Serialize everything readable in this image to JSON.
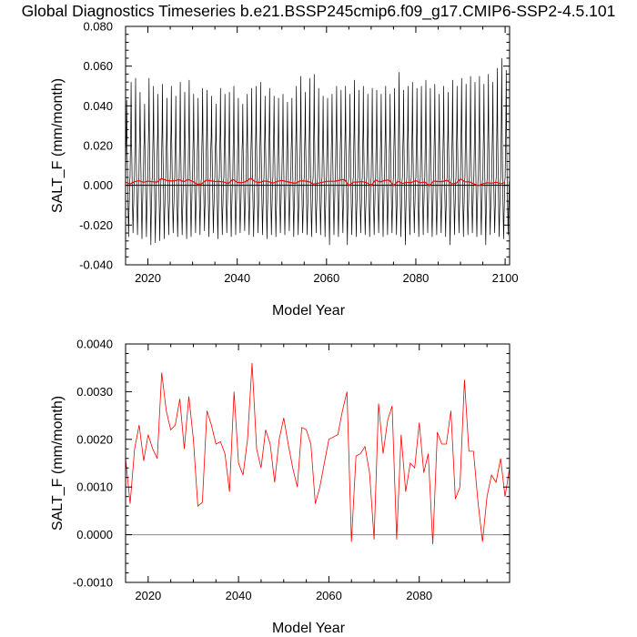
{
  "title": "Global Diagnostics Timeseries b.e21.BSSP245cmip6.f09_g17.CMIP6-SSP2-4.5.101",
  "colors": {
    "monthly": "#000000",
    "annual": "#ff0000",
    "zero": "#888888"
  },
  "chart_data": [
    {
      "type": "line",
      "xlabel": "Model Year",
      "ylabel": "SALT_F (mm/month)",
      "xlim": [
        2015,
        2101
      ],
      "ylim": [
        -0.04,
        0.08
      ],
      "xticks": [
        "2020",
        "2040",
        "2060",
        "2080",
        "2100"
      ],
      "yticks": [
        "-0.040",
        "-0.020",
        "0.000",
        "0.020",
        "0.040",
        "0.060",
        "0.080"
      ],
      "grid": false,
      "series": [
        {
          "style": "monthly seasonal cycle (black)",
          "annual_max": [
            0.043,
            0.052,
            0.054,
            0.047,
            0.041,
            0.054,
            0.05,
            0.046,
            0.051,
            0.044,
            0.05,
            0.045,
            0.052,
            0.047,
            0.053,
            0.046,
            0.044,
            0.049,
            0.048,
            0.045,
            0.041,
            0.049,
            0.046,
            0.047,
            0.05,
            0.044,
            0.041,
            0.046,
            0.049,
            0.05,
            0.052,
            0.045,
            0.049,
            0.045,
            0.044,
            0.046,
            0.042,
            0.044,
            0.05,
            0.055,
            0.047,
            0.054,
            0.056,
            0.049,
            0.045,
            0.044,
            0.046,
            0.05,
            0.048,
            0.05,
            0.046,
            0.053,
            0.048,
            0.05,
            0.046,
            0.049,
            0.048,
            0.046,
            0.05,
            0.046,
            0.049,
            0.057,
            0.048,
            0.05,
            0.052,
            0.049,
            0.05,
            0.053,
            0.049,
            0.051,
            0.046,
            0.05,
            0.047,
            0.053,
            0.05,
            0.054,
            0.051,
            0.055,
            0.052,
            0.055,
            0.051,
            0.056,
            0.052,
            0.059,
            0.064,
            0.058
          ],
          "annual_min": [
            -0.026,
            -0.024,
            -0.025,
            -0.027,
            -0.026,
            -0.03,
            -0.029,
            -0.028,
            -0.027,
            -0.025,
            -0.024,
            -0.026,
            -0.025,
            -0.027,
            -0.026,
            -0.024,
            -0.025,
            -0.023,
            -0.026,
            -0.024,
            -0.027,
            -0.025,
            -0.024,
            -0.026,
            -0.025,
            -0.024,
            -0.023,
            -0.025,
            -0.026,
            -0.024,
            -0.025,
            -0.027,
            -0.025,
            -0.026,
            -0.024,
            -0.025,
            -0.023,
            -0.026,
            -0.025,
            -0.024,
            -0.025,
            -0.026,
            -0.024,
            -0.025,
            -0.026,
            -0.03,
            -0.025,
            -0.026,
            -0.024,
            -0.03,
            -0.025,
            -0.026,
            -0.024,
            -0.025,
            -0.026,
            -0.025,
            -0.024,
            -0.026,
            -0.025,
            -0.024,
            -0.025,
            -0.026,
            -0.03,
            -0.025,
            -0.024,
            -0.026,
            -0.025,
            -0.024,
            -0.026,
            -0.025,
            -0.024,
            -0.026,
            -0.03,
            -0.025,
            -0.024,
            -0.026,
            -0.025,
            -0.024,
            -0.026,
            -0.025,
            -0.03,
            -0.025,
            -0.024,
            -0.026,
            -0.027,
            -0.025
          ]
        },
        {
          "style": "annual mean (red)",
          "x": [
            2015,
            2016,
            2017,
            2018,
            2019,
            2020,
            2021,
            2022,
            2023,
            2024,
            2025,
            2026,
            2027,
            2028,
            2029,
            2030,
            2031,
            2032,
            2033,
            2034,
            2035,
            2036,
            2037,
            2038,
            2039,
            2040,
            2041,
            2042,
            2043,
            2044,
            2045,
            2046,
            2047,
            2048,
            2049,
            2050,
            2051,
            2052,
            2053,
            2054,
            2055,
            2056,
            2057,
            2058,
            2059,
            2060,
            2061,
            2062,
            2063,
            2064,
            2065,
            2066,
            2067,
            2068,
            2069,
            2070,
            2071,
            2072,
            2073,
            2074,
            2075,
            2076,
            2077,
            2078,
            2079,
            2080,
            2081,
            2082,
            2083,
            2084,
            2085,
            2086,
            2087,
            2088,
            2089,
            2090,
            2091,
            2092,
            2093,
            2094,
            2095,
            2096,
            2097,
            2098,
            2099,
            2100
          ],
          "values": [
            0.0016,
            0.00065,
            0.0018,
            0.0023,
            0.00155,
            0.0021,
            0.0018,
            0.0016,
            0.0034,
            0.0026,
            0.0022,
            0.0023,
            0.00285,
            0.0018,
            0.0029,
            0.002,
            0.0006,
            0.00068,
            0.0026,
            0.0023,
            0.0019,
            0.00195,
            0.0017,
            0.0009,
            0.003,
            0.0015,
            0.00125,
            0.002,
            0.0036,
            0.0018,
            0.0014,
            0.0022,
            0.0019,
            0.0011,
            0.002,
            0.00245,
            0.0019,
            0.0014,
            0.001,
            0.00225,
            0.0022,
            0.0019,
            0.00065,
            0.001,
            0.0015,
            0.002,
            0.00205,
            0.0021,
            0.0026,
            0.003,
            -0.00015,
            0.00165,
            0.0017,
            0.00185,
            0.0013,
            -0.0001,
            0.00275,
            0.0017,
            0.0024,
            0.0027,
            -0.0001,
            0.0021,
            0.0009,
            0.0015,
            0.0014,
            0.00235,
            0.0013,
            0.0017,
            -0.0002,
            0.00215,
            0.0019,
            0.0019,
            0.0026,
            0.00075,
            0.001,
            0.00325,
            0.00175,
            0.00175,
            0.0007,
            -0.00015,
            0.0008,
            0.00125,
            0.0011,
            0.0016,
            0.0008,
            0.0014
          ]
        }
      ]
    },
    {
      "type": "line",
      "xlabel": "Model Year",
      "ylabel": "SALT_F (mm/month)",
      "xlim": [
        2015,
        2100
      ],
      "ylim": [
        -0.001,
        0.004
      ],
      "xticks": [
        "2020",
        "2040",
        "2060",
        "2080"
      ],
      "yticks": [
        "-0.0010",
        "0.0000",
        "0.0010",
        "0.0020",
        "0.0030",
        "0.0040"
      ],
      "grid": false,
      "series": [
        {
          "style": "annual mean (red)",
          "x": [
            2015,
            2016,
            2017,
            2018,
            2019,
            2020,
            2021,
            2022,
            2023,
            2024,
            2025,
            2026,
            2027,
            2028,
            2029,
            2030,
            2031,
            2032,
            2033,
            2034,
            2035,
            2036,
            2037,
            2038,
            2039,
            2040,
            2041,
            2042,
            2043,
            2044,
            2045,
            2046,
            2047,
            2048,
            2049,
            2050,
            2051,
            2052,
            2053,
            2054,
            2055,
            2056,
            2057,
            2058,
            2059,
            2060,
            2061,
            2062,
            2063,
            2064,
            2065,
            2066,
            2067,
            2068,
            2069,
            2070,
            2071,
            2072,
            2073,
            2074,
            2075,
            2076,
            2077,
            2078,
            2079,
            2080,
            2081,
            2082,
            2083,
            2084,
            2085,
            2086,
            2087,
            2088,
            2089,
            2090,
            2091,
            2092,
            2093,
            2094,
            2095,
            2096,
            2097,
            2098,
            2099,
            2100
          ],
          "values": [
            0.0016,
            0.00065,
            0.0018,
            0.0023,
            0.00155,
            0.0021,
            0.0018,
            0.0016,
            0.0034,
            0.0026,
            0.0022,
            0.0023,
            0.00285,
            0.0018,
            0.0029,
            0.002,
            0.0006,
            0.00068,
            0.0026,
            0.0023,
            0.0019,
            0.00195,
            0.0017,
            0.0009,
            0.003,
            0.0015,
            0.00125,
            0.002,
            0.0036,
            0.0018,
            0.0014,
            0.0022,
            0.0019,
            0.0011,
            0.002,
            0.00245,
            0.0019,
            0.0014,
            0.001,
            0.00225,
            0.0022,
            0.0019,
            0.00065,
            0.001,
            0.0015,
            0.002,
            0.00205,
            0.0021,
            0.0026,
            0.003,
            -0.00015,
            0.00165,
            0.0017,
            0.00185,
            0.0013,
            -0.0001,
            0.00275,
            0.0017,
            0.0024,
            0.0027,
            -0.0001,
            0.0021,
            0.0009,
            0.0015,
            0.0014,
            0.00235,
            0.0013,
            0.0017,
            -0.0002,
            0.00215,
            0.0019,
            0.0019,
            0.0026,
            0.00075,
            0.001,
            0.00325,
            0.00175,
            0.00175,
            0.0007,
            -0.00015,
            0.0008,
            0.00125,
            0.0011,
            0.0016,
            0.0008,
            0.0014
          ]
        }
      ]
    }
  ]
}
